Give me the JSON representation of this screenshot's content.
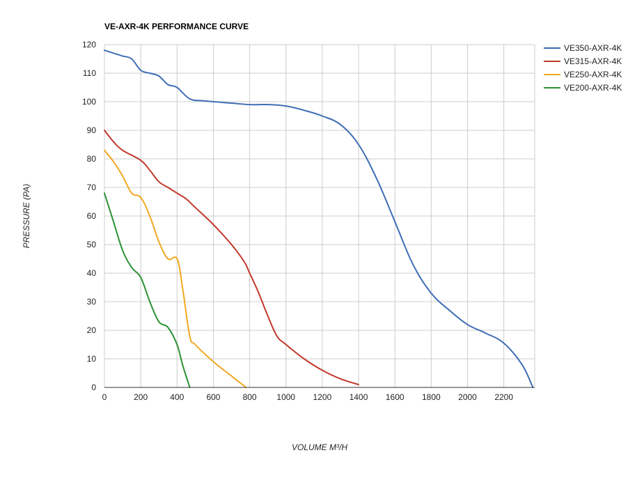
{
  "chart_data": {
    "type": "line",
    "title": "VE-AXR-4K PERFORMANCE CURVE",
    "xlabel": "VOLUME M³/H",
    "ylabel": "PRESSURE (PA)",
    "xlim": [
      0,
      2370
    ],
    "ylim": [
      0,
      120
    ],
    "x_ticks": [
      0,
      200,
      400,
      600,
      800,
      1000,
      1200,
      1400,
      1600,
      1800,
      2000,
      2200
    ],
    "y_ticks": [
      0,
      10,
      20,
      30,
      40,
      50,
      60,
      70,
      80,
      90,
      100,
      110,
      120
    ],
    "grid": true,
    "legend_position": "right",
    "series": [
      {
        "name": "VE350-AXR-4K",
        "color": "#3e6db5",
        "points": [
          [
            0,
            118
          ],
          [
            50,
            117
          ],
          [
            100,
            116
          ],
          [
            150,
            115
          ],
          [
            200,
            111
          ],
          [
            250,
            110
          ],
          [
            300,
            109
          ],
          [
            350,
            106
          ],
          [
            400,
            105
          ],
          [
            470,
            101
          ],
          [
            550,
            100.3
          ],
          [
            700,
            99.5
          ],
          [
            800,
            99
          ],
          [
            900,
            99
          ],
          [
            1000,
            98.5
          ],
          [
            1100,
            97
          ],
          [
            1200,
            95
          ],
          [
            1300,
            92
          ],
          [
            1400,
            85
          ],
          [
            1500,
            73
          ],
          [
            1600,
            58
          ],
          [
            1700,
            43
          ],
          [
            1800,
            33
          ],
          [
            1900,
            27
          ],
          [
            2000,
            22
          ],
          [
            2100,
            19
          ],
          [
            2200,
            15.5
          ],
          [
            2300,
            8
          ],
          [
            2360,
            0
          ]
        ]
      },
      {
        "name": "VE315-AXR-4K",
        "color": "#c0392b",
        "points": [
          [
            0,
            90
          ],
          [
            50,
            86
          ],
          [
            100,
            83
          ],
          [
            200,
            79.5
          ],
          [
            250,
            76
          ],
          [
            300,
            72
          ],
          [
            350,
            70
          ],
          [
            400,
            68
          ],
          [
            450,
            66
          ],
          [
            500,
            63
          ],
          [
            600,
            57
          ],
          [
            700,
            50
          ],
          [
            770,
            44
          ],
          [
            800,
            40
          ],
          [
            850,
            33
          ],
          [
            900,
            25
          ],
          [
            950,
            18
          ],
          [
            1000,
            15
          ],
          [
            1100,
            10
          ],
          [
            1200,
            6
          ],
          [
            1300,
            3
          ],
          [
            1400,
            1
          ]
        ]
      },
      {
        "name": "VE250-AXR-4K",
        "color": "#f0a820",
        "points": [
          [
            0,
            83
          ],
          [
            50,
            79
          ],
          [
            100,
            74
          ],
          [
            150,
            68
          ],
          [
            200,
            66.5
          ],
          [
            250,
            60
          ],
          [
            300,
            51
          ],
          [
            350,
            45
          ],
          [
            400,
            45
          ],
          [
            430,
            35
          ],
          [
            470,
            18
          ],
          [
            500,
            15
          ],
          [
            600,
            9
          ],
          [
            700,
            4
          ],
          [
            780,
            0
          ]
        ]
      },
      {
        "name": "VE200-AXR-4K",
        "color": "#2a9134",
        "points": [
          [
            0,
            68
          ],
          [
            50,
            58
          ],
          [
            100,
            48
          ],
          [
            150,
            42
          ],
          [
            200,
            38.5
          ],
          [
            250,
            30
          ],
          [
            300,
            23
          ],
          [
            350,
            21
          ],
          [
            400,
            15
          ],
          [
            430,
            8
          ],
          [
            470,
            0
          ]
        ]
      }
    ]
  }
}
